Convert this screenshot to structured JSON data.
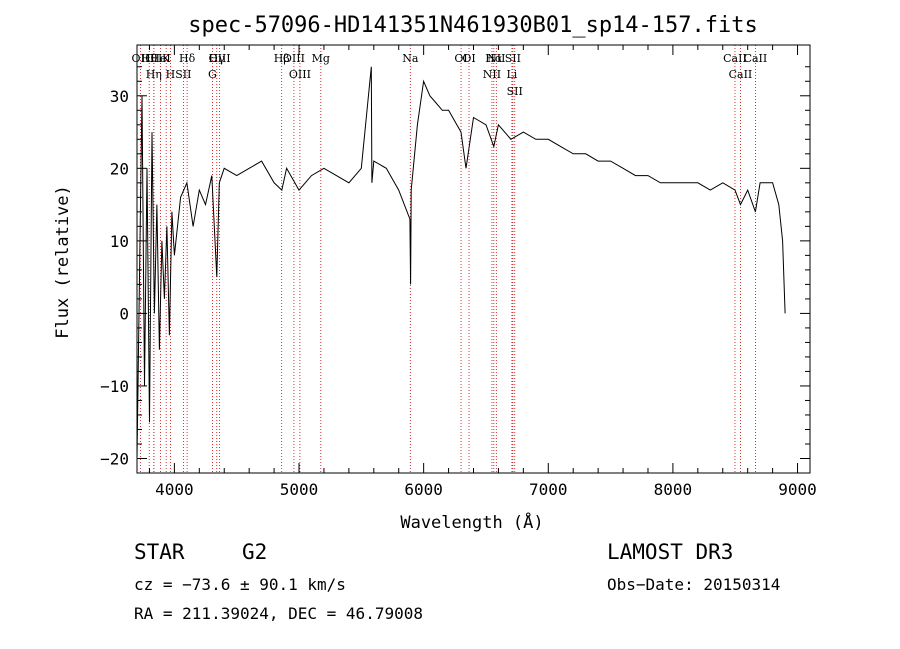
{
  "chart_data": {
    "type": "line",
    "title": "spec-57096-HD141351N461930B01_sp14-157.fits",
    "xlabel": "Wavelength (Å)",
    "ylabel": "Flux (relative)",
    "xlim": [
      3700,
      9100
    ],
    "ylim": [
      -22,
      37
    ],
    "x_ticks": [
      4000,
      5000,
      6000,
      7000,
      8000,
      9000
    ],
    "y_ticks": [
      -20,
      -10,
      0,
      10,
      20,
      30
    ],
    "grid": false,
    "series": [
      {
        "name": "flux",
        "x": [
          3700,
          3720,
          3740,
          3760,
          3780,
          3800,
          3820,
          3840,
          3860,
          3880,
          3900,
          3920,
          3940,
          3960,
          3980,
          4000,
          4050,
          4100,
          4150,
          4200,
          4250,
          4300,
          4340,
          4360,
          4400,
          4500,
          4600,
          4700,
          4800,
          4862,
          4900,
          5000,
          5100,
          5200,
          5300,
          5400,
          5500,
          5580,
          5585,
          5600,
          5700,
          5800,
          5890,
          5895,
          5900,
          5950,
          6000,
          6050,
          6100,
          6150,
          6200,
          6300,
          6340,
          6400,
          6500,
          6563,
          6600,
          6700,
          6800,
          6900,
          7000,
          7100,
          7200,
          7300,
          7400,
          7500,
          7600,
          7700,
          7800,
          7900,
          8000,
          8100,
          8200,
          8300,
          8400,
          8498,
          8542,
          8600,
          8662,
          8700,
          8800,
          8850,
          8880,
          8900
        ],
        "y": [
          -20,
          5,
          30,
          -10,
          20,
          -15,
          25,
          0,
          15,
          -5,
          10,
          2,
          12,
          -3,
          14,
          8,
          16,
          18,
          12,
          17,
          15,
          19,
          5,
          18,
          20,
          19,
          20,
          21,
          18,
          17,
          20,
          17,
          19,
          20,
          19,
          18,
          20,
          34,
          18,
          21,
          20,
          17,
          13,
          4,
          17,
          26,
          32,
          30,
          29,
          28,
          28,
          25,
          20,
          27,
          26,
          23,
          26,
          24,
          25,
          24,
          24,
          23,
          22,
          22,
          21,
          21,
          20,
          19,
          19,
          18,
          18,
          18,
          18,
          17,
          18,
          17,
          15,
          17,
          14,
          18,
          18,
          15,
          10,
          0
        ]
      }
    ],
    "lines": [
      {
        "label": "Hθ",
        "wl": 3798
      },
      {
        "label": "CII",
        "wl": 3835
      },
      {
        "label": "OII",
        "wl": 3727
      },
      {
        "label": "K",
        "wl": 3934
      },
      {
        "label": "HeI",
        "wl": 3889
      },
      {
        "label": "Hη",
        "wl": 3835
      },
      {
        "label": "H",
        "wl": 3968
      },
      {
        "label": "Hδ",
        "wl": 4102
      },
      {
        "label": "SII",
        "wl": 4072
      },
      {
        "label": "OIII",
        "wl": 4363
      },
      {
        "label": "Hγ",
        "wl": 4340
      },
      {
        "label": "G",
        "wl": 4305
      },
      {
        "label": "Hβ",
        "wl": 4861
      },
      {
        "label": "OIII",
        "wl": 4959
      },
      {
        "label": "OIII",
        "wl": 5007
      },
      {
        "label": "Mg",
        "wl": 5175
      },
      {
        "label": "Na",
        "wl": 5893
      },
      {
        "label": "OI",
        "wl": 6300
      },
      {
        "label": "OI",
        "wl": 6364
      },
      {
        "label": "Hα",
        "wl": 6563
      },
      {
        "label": "NII",
        "wl": 6548
      },
      {
        "label": "NII",
        "wl": 6583
      },
      {
        "label": "SII",
        "wl": 6716
      },
      {
        "label": "Li",
        "wl": 6708
      },
      {
        "label": "SII",
        "wl": 6731
      },
      {
        "label": "CaII",
        "wl": 8498
      },
      {
        "label": "CaII",
        "wl": 8542
      },
      {
        "label": "CaII",
        "wl": 8662
      }
    ]
  },
  "info": {
    "object_class": "STAR",
    "subclass": "G2",
    "survey": "LAMOST  DR3",
    "cz": "cz = −73.6 ± 90.1 km/s",
    "obs_date": "Obs−Date: 20150314",
    "coords": "RA = 211.39024, DEC =  46.79008"
  },
  "colors": {
    "axis": "#000000",
    "spectrum": "#000000",
    "line_marker": "#cc0000"
  }
}
